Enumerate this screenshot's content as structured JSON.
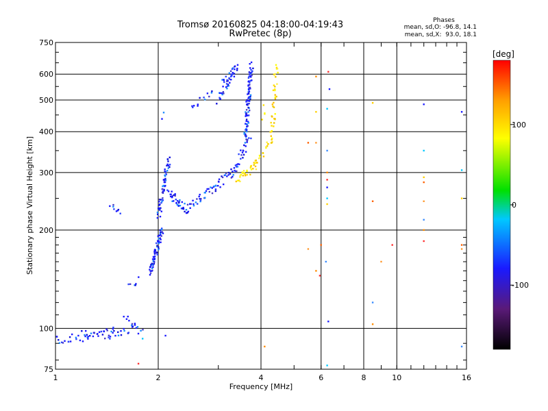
{
  "chart_data": {
    "type": "scatter",
    "title": "Tromsø 20160825 04:18:00-04:19:43",
    "subtitle": "RwPretec (8p)",
    "xlabel": "Frequency [MHz]",
    "ylabel": "Stationary phase Virtual Height [km]",
    "x_scale": "log",
    "y_scale": "log",
    "xlim": [
      1,
      16
    ],
    "ylim": [
      75,
      750
    ],
    "x_ticks": [
      1,
      2,
      4,
      6,
      8,
      10,
      16
    ],
    "y_ticks": [
      75,
      100,
      200,
      300,
      400,
      500,
      600,
      750
    ],
    "grid": true,
    "stats": {
      "heading": "Phases",
      "line_o": "mean, sd,O: -96.8, 14.1",
      "line_x": "mean, sd,X:  93.0, 18.1"
    },
    "colorbar": {
      "label": "[deg]",
      "range": [
        -180,
        180
      ],
      "ticks": [
        100,
        0,
        -100
      ],
      "colors": [
        "#000000",
        "#5a1a78",
        "#1a1aff",
        "#00c8ff",
        "#00e000",
        "#ffff00",
        "#ffa000",
        "#ff0000"
      ]
    },
    "series": [
      {
        "color_hint": "blue (about -100 deg)",
        "traces": [
          {
            "from": [
              1.0,
              92
            ],
            "to": [
              1.55,
              96
            ],
            "n": 40
          },
          {
            "from": [
              1.2,
              96
            ],
            "to": [
              1.8,
              100
            ],
            "n": 25
          },
          {
            "from": [
              1.6,
              110
            ],
            "to": [
              1.75,
              98
            ],
            "n": 10
          },
          {
            "from": [
              1.65,
              135
            ],
            "to": [
              1.75,
              140
            ],
            "n": 6
          },
          {
            "from": [
              1.45,
              240
            ],
            "to": [
              1.55,
              225
            ],
            "n": 8
          },
          {
            "from": [
              1.9,
              150
            ],
            "to": [
              2.05,
              200
            ],
            "n": 70
          },
          {
            "from": [
              2.0,
              220
            ],
            "to": [
              2.15,
              330
            ],
            "n": 60
          },
          {
            "from": [
              2.15,
              260
            ],
            "to": [
              2.4,
              232
            ],
            "n": 35
          },
          {
            "from": [
              2.4,
              230
            ],
            "to": [
              3.3,
              300
            ],
            "n": 55
          },
          {
            "from": [
              3.3,
              300
            ],
            "to": [
              3.7,
              380
            ],
            "n": 30
          },
          {
            "from": [
              3.6,
              380
            ],
            "to": [
              3.75,
              640
            ],
            "n": 90
          },
          {
            "from": [
              2.5,
              470
            ],
            "to": [
              2.9,
              530
            ],
            "n": 12
          },
          {
            "from": [
              3.0,
              500
            ],
            "to": [
              3.4,
              640
            ],
            "n": 35
          },
          {
            "from": [
              3.1,
              560
            ],
            "to": [
              3.3,
              610
            ],
            "n": 12
          },
          {
            "from": [
              2.05,
              450
            ],
            "to": [
              2.1,
              450
            ],
            "n": 2
          }
        ]
      },
      {
        "color_hint": "yellow (about +100 deg)",
        "traces": [
          {
            "from": [
              3.4,
              282
            ],
            "to": [
              3.9,
              320
            ],
            "n": 30
          },
          {
            "from": [
              3.9,
              320
            ],
            "to": [
              4.3,
              380
            ],
            "n": 18
          },
          {
            "from": [
              4.3,
              380
            ],
            "to": [
              4.45,
              640
            ],
            "n": 40
          },
          {
            "from": [
              4.05,
              440
            ],
            "to": [
              4.1,
              470
            ],
            "n": 4
          }
        ]
      },
      {
        "color_hint": "sparse isolated echoes (mixed colors)",
        "points": [
          [
            5.8,
            590
          ],
          [
            6.3,
            610
          ],
          [
            6.35,
            540
          ],
          [
            6.25,
            470
          ],
          [
            5.8,
            460
          ],
          [
            5.5,
            370
          ],
          [
            5.8,
            370
          ],
          [
            6.25,
            350
          ],
          [
            6.25,
            300
          ],
          [
            6.25,
            285
          ],
          [
            6.25,
            270
          ],
          [
            6.25,
            250
          ],
          [
            6.25,
            240
          ],
          [
            6.0,
            180
          ],
          [
            5.5,
            175
          ],
          [
            6.2,
            160
          ],
          [
            5.8,
            150
          ],
          [
            5.95,
            145
          ],
          [
            6.3,
            105
          ],
          [
            6.25,
            77
          ],
          [
            8.5,
            490
          ],
          [
            8.5,
            245
          ],
          [
            9.0,
            160
          ],
          [
            8.5,
            120
          ],
          [
            8.5,
            103
          ],
          [
            9.7,
            180
          ],
          [
            12.0,
            485
          ],
          [
            12.0,
            350
          ],
          [
            12.0,
            290
          ],
          [
            12.0,
            280
          ],
          [
            12.0,
            245
          ],
          [
            12.0,
            215
          ],
          [
            12.0,
            200
          ],
          [
            12.0,
            185
          ],
          [
            15.5,
            460
          ],
          [
            15.5,
            305
          ],
          [
            15.5,
            250
          ],
          [
            15.5,
            180
          ],
          [
            15.5,
            175
          ],
          [
            15.5,
            88
          ],
          [
            4.1,
            88
          ],
          [
            1.75,
            78
          ],
          [
            2.1,
            95
          ],
          [
            1.8,
            93
          ]
        ]
      }
    ]
  }
}
